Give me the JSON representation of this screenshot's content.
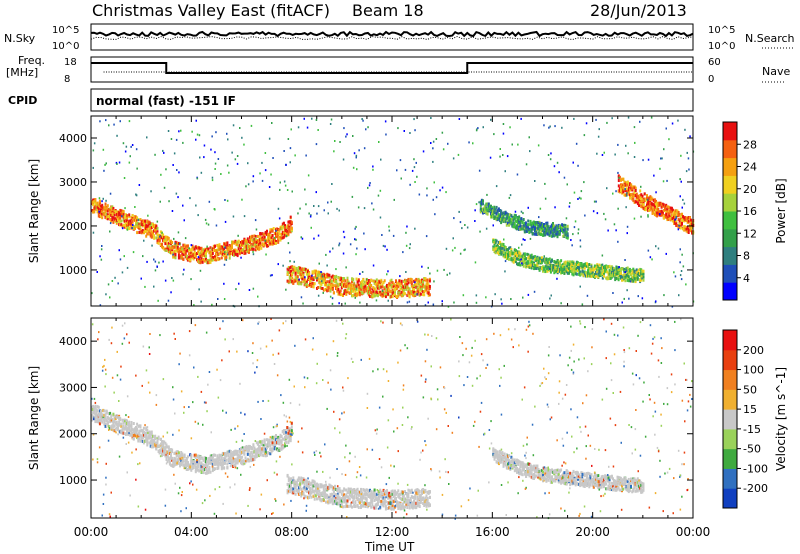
{
  "header": {
    "title": "Christmas Valley East (fitACF)",
    "beam": "Beam 18",
    "date": "28/Jun/2013",
    "cpid_label": "CPID",
    "cpid_text": "normal (fast) -151 IF"
  },
  "panels": {
    "nsky": {
      "left_label": "N.Sky",
      "right_label": "N.Search",
      "left_ticks": [
        "10^5",
        "10^0"
      ],
      "right_ticks": [
        "10^5",
        "10^0"
      ]
    },
    "freq": {
      "left_label_1": "Freq.",
      "left_label_2": "[MHz]",
      "right_label": "Nave",
      "left_ticks": [
        "18",
        "8"
      ],
      "right_ticks": [
        "60",
        "0"
      ]
    }
  },
  "chart_data": [
    {
      "type": "heatmap",
      "title": "",
      "xlabel": "Time UT",
      "ylabel": "Slant Range [km]",
      "xlim": [
        0,
        24
      ],
      "ylim": [
        180,
        4500
      ],
      "x_ticks": [
        "00:00",
        "04:00",
        "08:00",
        "12:00",
        "16:00",
        "20:00",
        "00:00"
      ],
      "y_ticks": [
        "1000",
        "2000",
        "3000",
        "4000"
      ],
      "colorbar": {
        "label": "Power [dB]",
        "ticks": [
          "4",
          "8",
          "12",
          "16",
          "20",
          "24",
          "28"
        ],
        "colors": [
          "#0000ff",
          "#1f4fb8",
          "#2f7f7f",
          "#33a04a",
          "#3fbf3f",
          "#a6d23c",
          "#f0d020",
          "#f5a010",
          "#f56010",
          "#e81010"
        ],
        "range": [
          0,
          30
        ]
      },
      "bands": [
        {
          "name": "main",
          "points": [
            [
              0,
              2500
            ],
            [
              1.2,
              2200
            ],
            [
              2.5,
              1900
            ],
            [
              3.2,
              1500
            ],
            [
              4.5,
              1350
            ],
            [
              6,
              1550
            ],
            [
              7.5,
              1850
            ],
            [
              8,
              2100
            ]
          ],
          "value": 24,
          "spread": 180
        },
        {
          "name": "near",
          "points": [
            [
              7.8,
              950
            ],
            [
              9,
              800
            ],
            [
              10,
              650
            ],
            [
              12,
              600
            ],
            [
              13.5,
              650
            ]
          ],
          "value": 22,
          "spread": 200
        },
        {
          "name": "mid",
          "points": [
            [
              16,
              1600
            ],
            [
              17,
              1300
            ],
            [
              18,
              1150
            ],
            [
              19.5,
              1050
            ],
            [
              21,
              950
            ],
            [
              22,
              900
            ]
          ],
          "value": 14,
          "spread": 150
        },
        {
          "name": "late",
          "points": [
            [
              21,
              3000
            ],
            [
              22,
              2600
            ],
            [
              23,
              2300
            ],
            [
              24,
              2000
            ]
          ],
          "value": 25,
          "spread": 180
        },
        {
          "name": "upper",
          "points": [
            [
              15.5,
              2500
            ],
            [
              16.5,
              2200
            ],
            [
              17.5,
              2000
            ],
            [
              19,
              1900
            ]
          ],
          "value": 10,
          "spread": 150
        }
      ]
    },
    {
      "type": "heatmap",
      "title": "",
      "xlabel": "Time UT",
      "ylabel": "Slant Range [km]",
      "xlim": [
        0,
        24
      ],
      "ylim": [
        180,
        4500
      ],
      "x_ticks": [
        "00:00",
        "04:00",
        "08:00",
        "12:00",
        "16:00",
        "20:00",
        "00:00"
      ],
      "y_ticks": [
        "1000",
        "2000",
        "3000",
        "4000"
      ],
      "colorbar": {
        "label": "Velocity [m s^-1]",
        "ticks": [
          "200",
          "100",
          "50",
          "15",
          "-15",
          "-50",
          "-100",
          "-200"
        ],
        "colors": [
          "#1040c0",
          "#3070c0",
          "#3faa3f",
          "#9ad25a",
          "#c8c8c8",
          "#f0b030",
          "#f08020",
          "#e84010",
          "#e81010"
        ],
        "range": [
          -250,
          250
        ]
      },
      "bands": [
        {
          "name": "ground-scatter",
          "points": [
            [
              0,
              2500
            ],
            [
              1.2,
              2200
            ],
            [
              2.5,
              1900
            ],
            [
              3.2,
              1500
            ],
            [
              4.5,
              1350
            ],
            [
              6,
              1550
            ],
            [
              7.5,
              1850
            ],
            [
              8,
              2100
            ]
          ],
          "value": 0,
          "spread": 180
        },
        {
          "name": "near-gs",
          "points": [
            [
              7.8,
              950
            ],
            [
              9,
              800
            ],
            [
              10,
              650
            ],
            [
              12,
              600
            ],
            [
              13.5,
              650
            ]
          ],
          "value": 0,
          "spread": 200
        },
        {
          "name": "mid-gs",
          "points": [
            [
              16,
              1600
            ],
            [
              17,
              1300
            ],
            [
              18,
              1150
            ],
            [
              19.5,
              1050
            ],
            [
              21,
              950
            ],
            [
              22,
              900
            ]
          ],
          "value": 0,
          "spread": 150
        }
      ]
    }
  ]
}
